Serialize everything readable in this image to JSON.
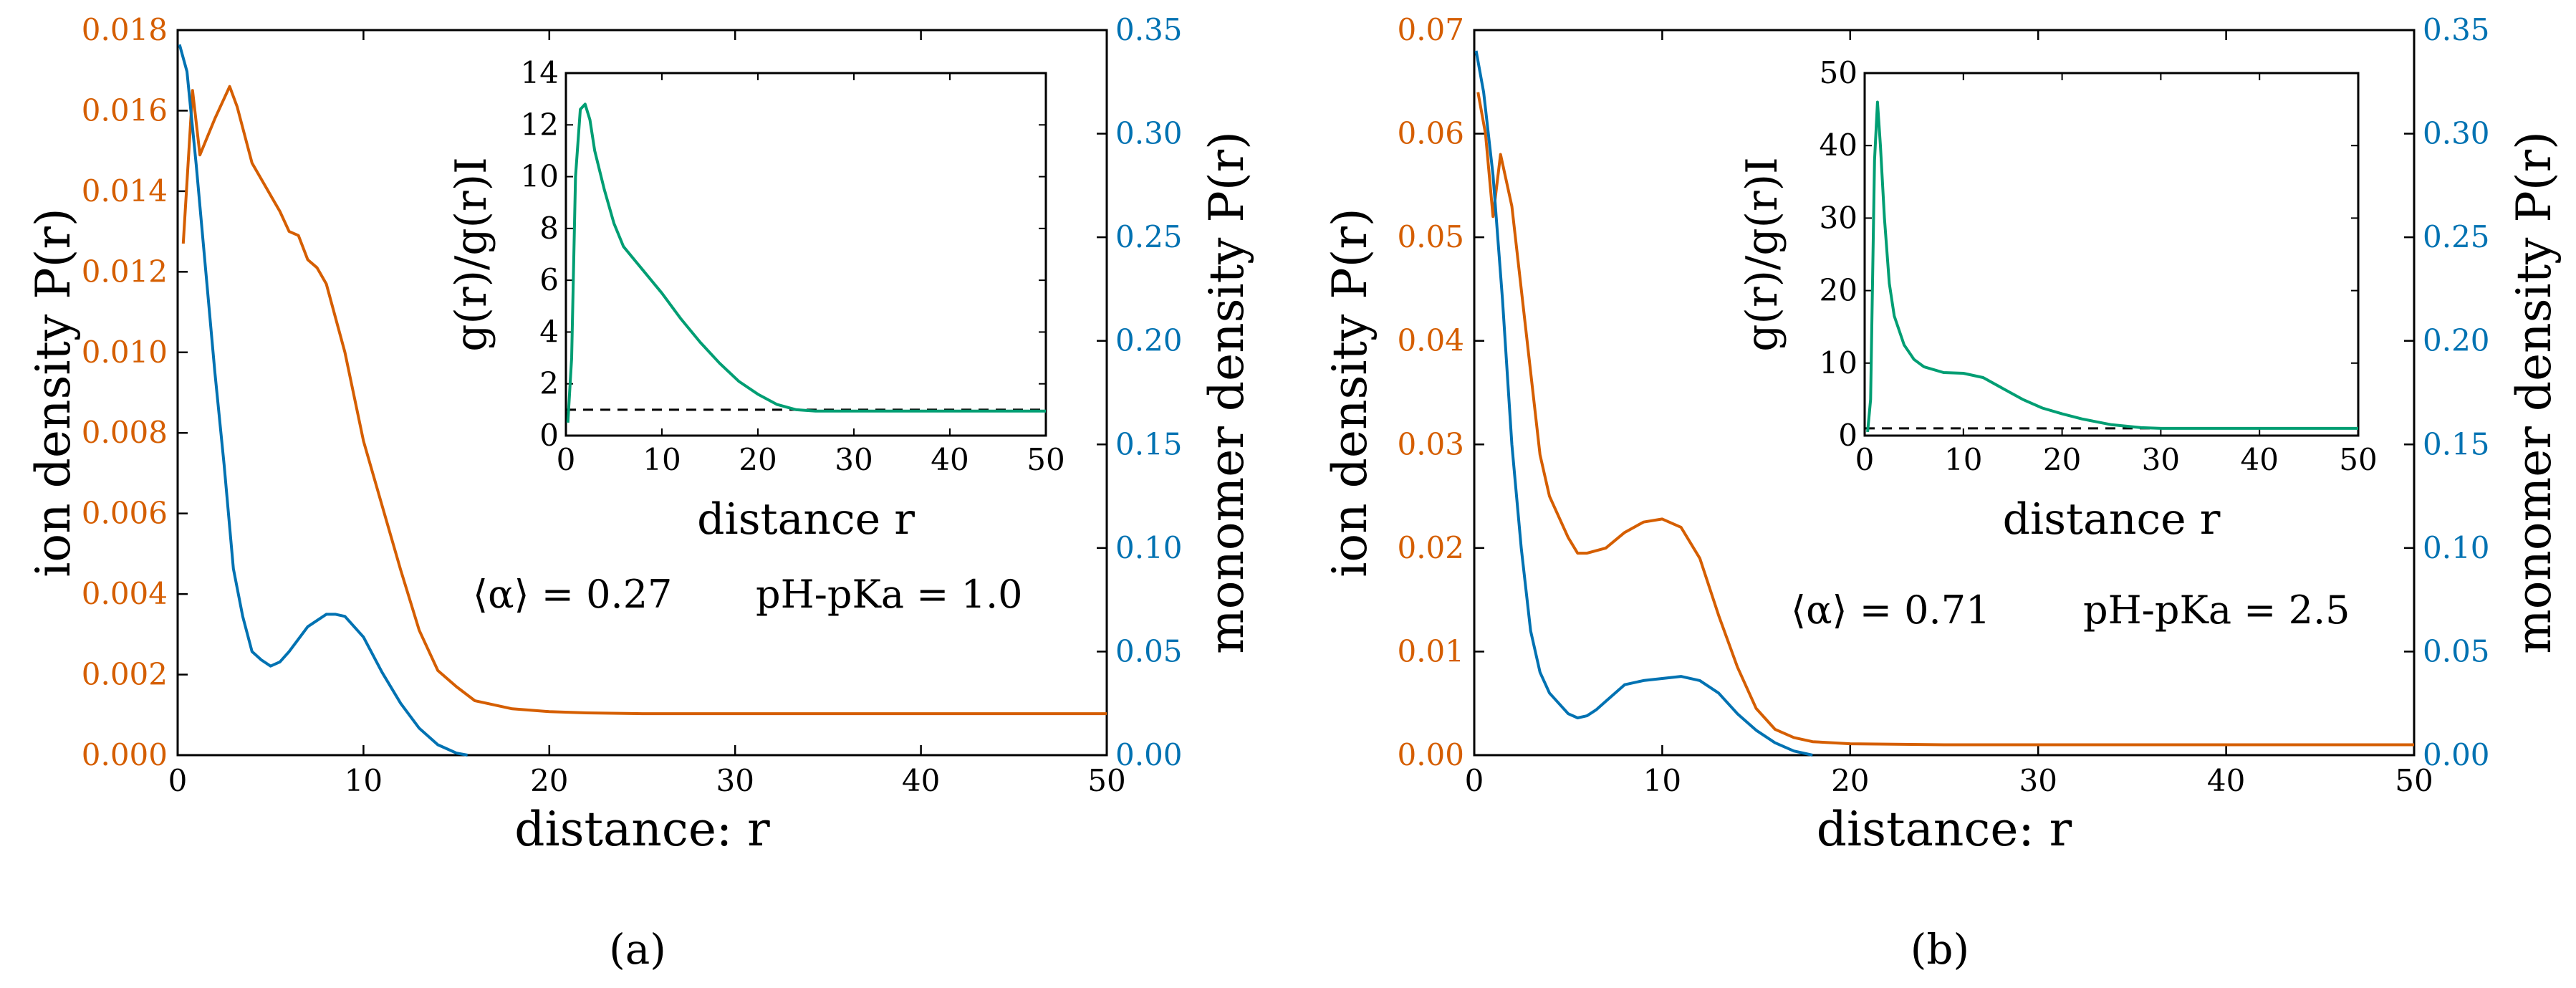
{
  "colors": {
    "ion": "#d55e00",
    "monomer": "#0072b2",
    "ratio": "#009e73",
    "axis": "#000000"
  },
  "chart_data": [
    {
      "id": "a",
      "type": "line",
      "panel_label": "(a)",
      "xlabel": "distance: r",
      "ylabel_left": "ion density P(r)",
      "ylabel_right": "monomer density P(r)",
      "xlim": [
        0,
        50
      ],
      "ylim_left": [
        0,
        0.018
      ],
      "ylim_right": [
        0,
        0.35
      ],
      "xticks": [
        "0",
        "10",
        "20",
        "30",
        "40",
        "50"
      ],
      "yticks_left": [
        "0.000",
        "0.002",
        "0.004",
        "0.006",
        "0.008",
        "0.010",
        "0.012",
        "0.014",
        "0.016",
        "0.018"
      ],
      "yticks_right": [
        "0.00",
        "0.05",
        "0.10",
        "0.15",
        "0.20",
        "0.25",
        "0.30",
        "0.35"
      ],
      "annotation_alpha": "⟨α⟩ = 0.27",
      "annotation_ph": "pH-pKa = 1.0",
      "series": [
        {
          "name": "ion density",
          "axis": "left",
          "color": "ion",
          "x": [
            0.3,
            0.8,
            1.2,
            2,
            2.8,
            3.2,
            4,
            5,
            5.5,
            6,
            6.5,
            7,
            7.5,
            8,
            9,
            10,
            11,
            12,
            13,
            14,
            15,
            16,
            17,
            18,
            20,
            22,
            25,
            30,
            35,
            40,
            45,
            50
          ],
          "values": [
            0.0127,
            0.0165,
            0.0149,
            0.0158,
            0.0166,
            0.0161,
            0.0147,
            0.0139,
            0.0135,
            0.013,
            0.0129,
            0.0123,
            0.0121,
            0.0117,
            0.01,
            0.0078,
            0.0062,
            0.0046,
            0.0031,
            0.0021,
            0.0017,
            0.00135,
            0.00125,
            0.00115,
            0.00108,
            0.00105,
            0.00103,
            0.00103,
            0.00103,
            0.00103,
            0.00103,
            0.00103
          ]
        },
        {
          "name": "monomer density",
          "axis": "right",
          "color": "monomer",
          "x": [
            0.1,
            0.5,
            1,
            1.5,
            2,
            2.5,
            3,
            3.5,
            4,
            4.5,
            5,
            5.5,
            6,
            7,
            8,
            8.5,
            9,
            10,
            11,
            12,
            13,
            14,
            15,
            15.6
          ],
          "values": [
            0.343,
            0.33,
            0.285,
            0.235,
            0.185,
            0.14,
            0.09,
            0.067,
            0.05,
            0.046,
            0.043,
            0.045,
            0.05,
            0.062,
            0.068,
            0.068,
            0.067,
            0.057,
            0.04,
            0.025,
            0.013,
            0.005,
            0.001,
            0
          ]
        }
      ],
      "inset": {
        "xlabel": "distance r",
        "ylabel": "g(r)/g(r)I",
        "xlim": [
          0,
          50
        ],
        "ylim": [
          0,
          14
        ],
        "xticks": [
          "0",
          "10",
          "20",
          "30",
          "40",
          "50"
        ],
        "yticks": [
          "0",
          "2",
          "4",
          "6",
          "8",
          "10",
          "12",
          "14"
        ],
        "reference_line": 1,
        "series": [
          {
            "name": "g(r)/g(r)I",
            "color": "ratio",
            "x": [
              0.2,
              0.6,
              1,
              1.5,
              2,
              2.5,
              3,
              4,
              5,
              6,
              8,
              10,
              12,
              14,
              16,
              18,
              20,
              22,
              24,
              26,
              30,
              40,
              50
            ],
            "values": [
              0.5,
              3,
              10,
              12.6,
              12.8,
              12.2,
              11,
              9.5,
              8.2,
              7.3,
              6.4,
              5.5,
              4.5,
              3.6,
              2.8,
              2.1,
              1.6,
              1.2,
              1.0,
              0.95,
              0.95,
              0.95,
              0.95
            ]
          }
        ]
      }
    },
    {
      "id": "b",
      "type": "line",
      "panel_label": "(b)",
      "xlabel": "distance: r",
      "ylabel_left": "ion density P(r)",
      "ylabel_right": "monomer density P(r)",
      "xlim": [
        0,
        50
      ],
      "ylim_left": [
        0,
        0.07
      ],
      "ylim_right": [
        0,
        0.35
      ],
      "xticks": [
        "0",
        "10",
        "20",
        "30",
        "40",
        "50"
      ],
      "yticks_left": [
        "0.00",
        "0.01",
        "0.02",
        "0.03",
        "0.04",
        "0.05",
        "0.06",
        "0.07"
      ],
      "yticks_right": [
        "0.00",
        "0.05",
        "0.10",
        "0.15",
        "0.20",
        "0.25",
        "0.30",
        "0.35"
      ],
      "annotation_alpha": "⟨α⟩ = 0.71",
      "annotation_ph": "pH-pKa = 2.5",
      "series": [
        {
          "name": "ion density",
          "axis": "left",
          "color": "ion",
          "x": [
            0.2,
            0.6,
            1,
            1.4,
            2,
            2.5,
            3,
            3.5,
            4,
            5,
            5.5,
            6,
            7,
            8,
            9,
            10,
            11,
            12,
            13,
            14,
            15,
            16,
            17,
            18,
            20,
            25,
            30,
            35,
            40,
            45,
            50
          ],
          "values": [
            0.064,
            0.06,
            0.052,
            0.058,
            0.053,
            0.045,
            0.037,
            0.029,
            0.025,
            0.021,
            0.0195,
            0.0195,
            0.02,
            0.0215,
            0.0225,
            0.0228,
            0.022,
            0.019,
            0.0135,
            0.0085,
            0.0045,
            0.0025,
            0.0017,
            0.0013,
            0.0011,
            0.001,
            0.001,
            0.001,
            0.001,
            0.001,
            0.001
          ]
        },
        {
          "name": "monomer density",
          "axis": "right",
          "color": "monomer",
          "x": [
            0.1,
            0.5,
            1,
            1.5,
            2,
            2.5,
            3,
            3.5,
            4,
            5,
            5.5,
            6,
            6.5,
            7,
            8,
            9,
            10,
            11,
            12,
            13,
            14,
            15,
            16,
            17,
            18
          ],
          "values": [
            0.34,
            0.32,
            0.28,
            0.22,
            0.15,
            0.1,
            0.06,
            0.04,
            0.03,
            0.02,
            0.018,
            0.019,
            0.022,
            0.026,
            0.034,
            0.036,
            0.037,
            0.038,
            0.036,
            0.03,
            0.02,
            0.012,
            0.006,
            0.002,
            0
          ]
        }
      ],
      "inset": {
        "xlabel": "distance r",
        "ylabel": "g(r)/g(r)I",
        "xlim": [
          0,
          50
        ],
        "ylim": [
          0,
          50
        ],
        "xticks": [
          "0",
          "10",
          "20",
          "30",
          "40",
          "50"
        ],
        "yticks": [
          "0",
          "10",
          "20",
          "30",
          "40",
          "50"
        ],
        "reference_line": 1,
        "series": [
          {
            "name": "g(r)/g(r)I",
            "color": "ratio",
            "x": [
              0.3,
              0.6,
              1,
              1.3,
              1.6,
              2,
              2.5,
              3,
              4,
              5,
              6,
              8,
              10,
              12,
              14,
              16,
              18,
              20,
              22,
              25,
              28,
              30,
              40,
              50
            ],
            "values": [
              0.5,
              5,
              38,
              46,
              40,
              30,
              21,
              16.5,
              12.5,
              10.5,
              9.5,
              8.7,
              8.6,
              8,
              6.5,
              5,
              3.8,
              3,
              2.3,
              1.5,
              1.1,
              1.0,
              1.0,
              1.0
            ]
          }
        ]
      }
    }
  ]
}
